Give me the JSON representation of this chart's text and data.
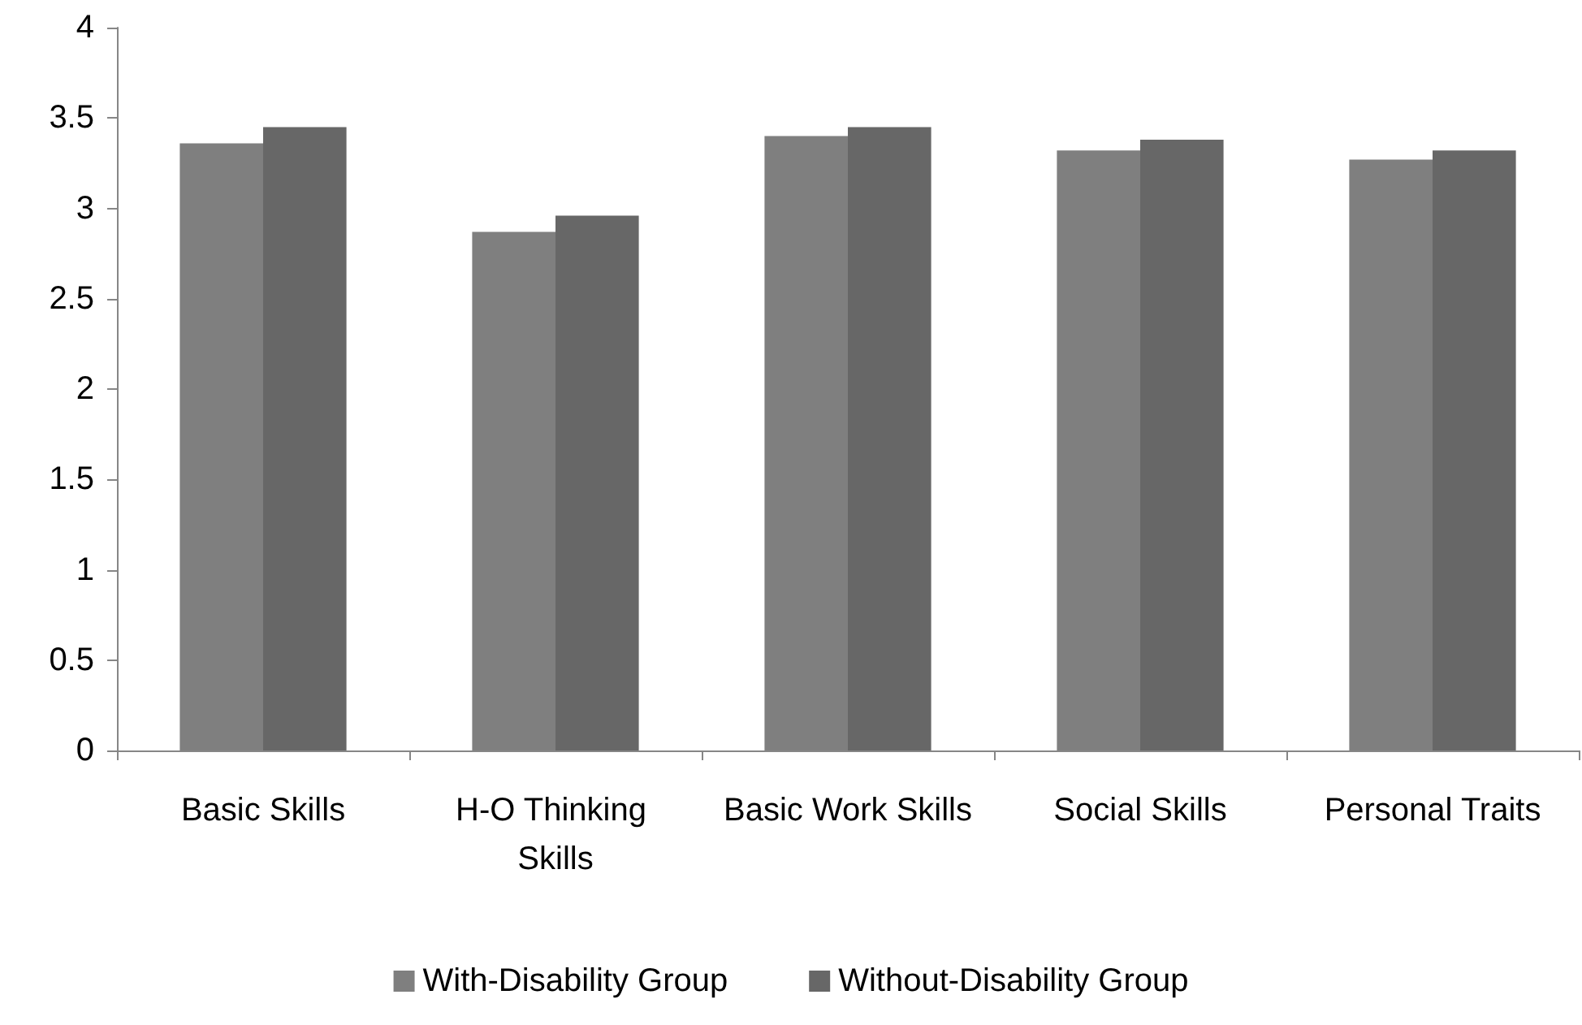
{
  "chart_data": {
    "type": "bar",
    "categories": [
      "Basic Skills",
      "H-O Thinking Skills",
      "Basic Work Skills",
      "Social Skills",
      "Personal Traits"
    ],
    "series": [
      {
        "name": "With-Disability Group",
        "color": "#7f7f7f",
        "values": [
          3.36,
          2.87,
          3.4,
          3.32,
          3.27
        ]
      },
      {
        "name": "Without-Disability Group",
        "color": "#676767",
        "values": [
          3.45,
          2.96,
          3.45,
          3.38,
          3.32
        ]
      }
    ],
    "ylim": [
      0,
      4
    ],
    "yticks": [
      0,
      0.5,
      1,
      1.5,
      2,
      2.5,
      3,
      3.5,
      4
    ],
    "grid": false,
    "legend": "bottom"
  }
}
